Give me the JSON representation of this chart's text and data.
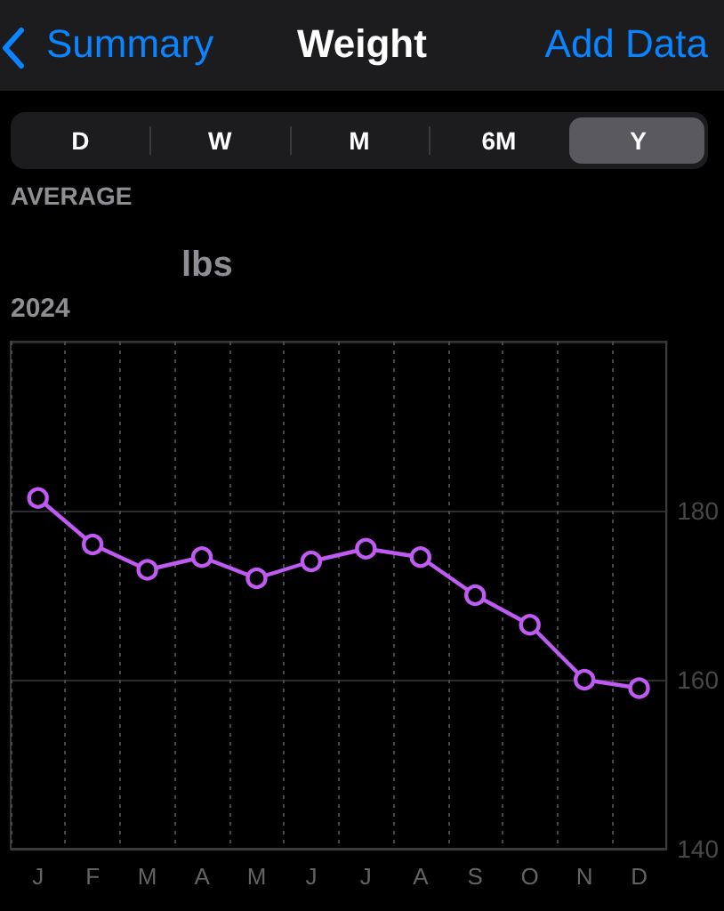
{
  "chart_data": {
    "type": "line",
    "title": "Weight",
    "annotations": [
      "Summary",
      "Add Data",
      "D",
      "W",
      "M",
      "6M",
      "Y",
      "AVERAGE",
      "lbs",
      "2024"
    ],
    "categories": [
      "J",
      "F",
      "M",
      "A",
      "M",
      "J",
      "J",
      "A",
      "S",
      "O",
      "N",
      "D"
    ],
    "series": [
      {
        "color": "#bf5af2",
        "values": [
          181.5,
          176,
          173,
          174.5,
          172,
          174,
          175.5,
          174.5,
          170,
          166.5,
          160,
          159
        ]
      }
    ],
    "ylim": [
      140,
      200
    ],
    "yticks": [
      140,
      160,
      180,
      {
        "value": 200,
        "label": null
      }
    ],
    "grid": true,
    "marker": "circle",
    "line_style": "solid"
  }
}
